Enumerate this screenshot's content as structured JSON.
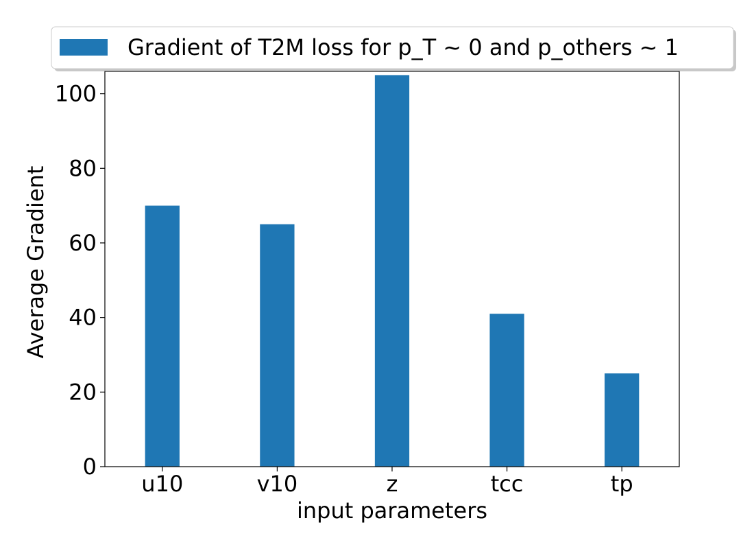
{
  "chart_data": {
    "type": "bar",
    "categories": [
      "u10",
      "v10",
      "z",
      "tcc",
      "tp"
    ],
    "series": [
      {
        "name": "Gradient of T2M loss for p_T ~ 0 and p_others ~ 1",
        "values": [
          70,
          65,
          105,
          41,
          25
        ]
      }
    ],
    "xlabel": "input parameters",
    "ylabel": "Average Gradient",
    "ylim": [
      0,
      106
    ],
    "yticks": [
      0,
      20,
      40,
      60,
      80,
      100
    ],
    "grid": false,
    "legend_position": "top-center",
    "bar_color": "#1f77b4"
  }
}
